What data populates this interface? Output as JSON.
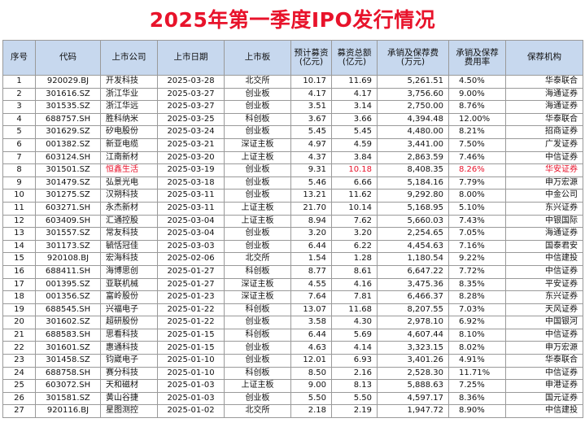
{
  "title": "2025年第一季度IPO发行情况",
  "headers": [
    "序号",
    "代码",
    "上市公司",
    "上市日期",
    "上市板",
    "预计募资\n(亿元)",
    "募资总额\n(亿元)",
    "承销及保荐费\n(万元)",
    "承销及保荐\n费用率",
    "保荐机构"
  ],
  "highlight_row": 8,
  "highlight_color": "#e8132b",
  "header_bg": "#c7d8ee",
  "rows": [
    [
      "1",
      "920029.BJ",
      "开发科技",
      "2025-03-28",
      "北交所",
      "10.17",
      "11.69",
      "5,261.51",
      "4.50%",
      "华泰联合"
    ],
    [
      "2",
      "301616.SZ",
      "浙江华业",
      "2025-03-27",
      "创业板",
      "4.17",
      "4.17",
      "3,756.60",
      "9.00%",
      "海通证券"
    ],
    [
      "3",
      "301535.SZ",
      "浙江华远",
      "2025-03-27",
      "创业板",
      "3.51",
      "3.14",
      "2,750.00",
      "8.76%",
      "海通证券"
    ],
    [
      "4",
      "688757.SH",
      "胜科纳米",
      "2025-03-25",
      "科创板",
      "3.67",
      "3.66",
      "4,394.48",
      "12.00%",
      "华泰联合"
    ],
    [
      "5",
      "301629.SZ",
      "矽电股份",
      "2025-03-24",
      "创业板",
      "5.45",
      "5.45",
      "4,480.00",
      "8.21%",
      "招商证券"
    ],
    [
      "6",
      "001382.SZ",
      "新亚电缆",
      "2025-03-21",
      "深证主板",
      "4.97",
      "4.59",
      "3,441.00",
      "7.50%",
      "广发证券"
    ],
    [
      "7",
      "603124.SH",
      "江南新材",
      "2025-03-20",
      "上证主板",
      "4.37",
      "3.84",
      "2,863.59",
      "7.46%",
      "中信证券"
    ],
    [
      "8",
      "301501.SZ",
      "恒鑫生活",
      "2025-03-19",
      "创业板",
      "9.31",
      "10.18",
      "8,408.35",
      "8.26%",
      "华安证券"
    ],
    [
      "9",
      "301479.SZ",
      "弘景光电",
      "2025-03-18",
      "创业板",
      "5.46",
      "6.66",
      "5,184.16",
      "7.79%",
      "申万宏源"
    ],
    [
      "10",
      "301275.SZ",
      "汉朔科技",
      "2025-03-11",
      "创业板",
      "13.21",
      "11.62",
      "9,292.80",
      "8.00%",
      "中金公司"
    ],
    [
      "11",
      "603271.SH",
      "永杰新材",
      "2025-03-11",
      "上证主板",
      "21.70",
      "10.14",
      "5,168.95",
      "5.10%",
      "东兴证券"
    ],
    [
      "12",
      "603409.SH",
      "汇通控股",
      "2025-03-04",
      "上证主板",
      "8.94",
      "7.62",
      "5,660.03",
      "7.43%",
      "中银国际"
    ],
    [
      "13",
      "301557.SZ",
      "常友科技",
      "2025-03-04",
      "创业板",
      "3.20",
      "3.20",
      "2,254.65",
      "7.05%",
      "海通证券"
    ],
    [
      "14",
      "301173.SZ",
      "毓恬冠佳",
      "2025-03-03",
      "创业板",
      "6.44",
      "6.22",
      "4,454.63",
      "7.16%",
      "国泰君安"
    ],
    [
      "15",
      "920108.BJ",
      "宏海科技",
      "2025-02-06",
      "北交所",
      "1.54",
      "1.28",
      "1,180.54",
      "9.22%",
      "中信建投"
    ],
    [
      "16",
      "688411.SH",
      "海博思创",
      "2025-01-27",
      "科创板",
      "8.77",
      "8.61",
      "6,647.22",
      "7.72%",
      "中信证券"
    ],
    [
      "17",
      "001395.SZ",
      "亚联机械",
      "2025-01-27",
      "深证主板",
      "4.55",
      "4.16",
      "3,475.36",
      "8.35%",
      "平安证券"
    ],
    [
      "18",
      "001356.SZ",
      "富岭股份",
      "2025-01-23",
      "深证主板",
      "7.64",
      "7.81",
      "6,466.37",
      "8.28%",
      "东兴证券"
    ],
    [
      "19",
      "688545.SH",
      "兴福电子",
      "2025-01-22",
      "科创板",
      "13.07",
      "11.68",
      "8,207.55",
      "7.03%",
      "天风证券"
    ],
    [
      "20",
      "301602.SZ",
      "超研股份",
      "2025-01-22",
      "创业板",
      "3.58",
      "4.30",
      "2,978.10",
      "6.92%",
      "中国银河"
    ],
    [
      "21",
      "688583.SH",
      "思看科技",
      "2025-01-15",
      "科创板",
      "6.44",
      "5.69",
      "4,607.44",
      "8.10%",
      "中信证券"
    ],
    [
      "22",
      "301601.SZ",
      "惠通科技",
      "2025-01-15",
      "创业板",
      "4.63",
      "4.14",
      "3,323.15",
      "8.02%",
      "申万宏源"
    ],
    [
      "23",
      "301458.SZ",
      "钧崴电子",
      "2025-01-10",
      "创业板",
      "12.01",
      "6.93",
      "3,401.26",
      "4.91%",
      "华泰联合"
    ],
    [
      "24",
      "688758.SH",
      "赛分科技",
      "2025-01-10",
      "科创板",
      "8.50",
      "2.16",
      "2,528.30",
      "11.71%",
      "中信证券"
    ],
    [
      "25",
      "603072.SH",
      "天和磁材",
      "2025-01-03",
      "上证主板",
      "9.00",
      "8.13",
      "5,888.63",
      "7.25%",
      "申港证券"
    ],
    [
      "26",
      "301581.SZ",
      "黄山谷捷",
      "2025-01-03",
      "创业板",
      "5.50",
      "5.50",
      "4,597.17",
      "8.36%",
      "国元证券"
    ],
    [
      "27",
      "920116.BJ",
      "星图测控",
      "2025-01-02",
      "北交所",
      "2.18",
      "2.19",
      "1,947.72",
      "8.90%",
      "中信建投"
    ]
  ]
}
